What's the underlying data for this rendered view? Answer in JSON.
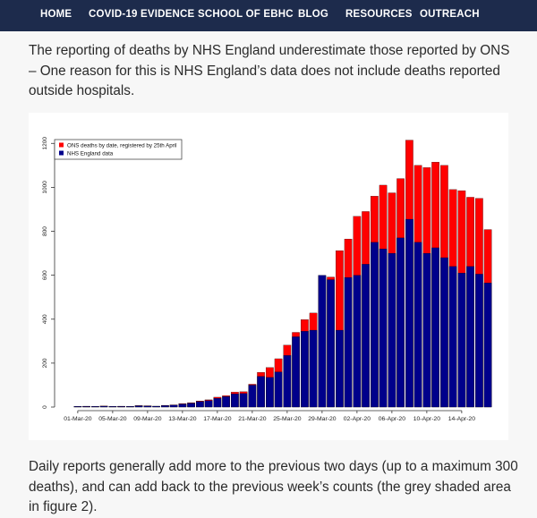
{
  "nav": {
    "items": [
      "HOME",
      "COVID-19 EVIDENCE",
      "SCHOOL OF EBHC",
      "BLOG",
      "RESOURCES",
      "OUTREACH"
    ]
  },
  "intro_text": "The reporting of deaths by  NHS England underestimate those reported by ONS  – One reason for this is NHS England’s data does not include deaths reported outside hospitals.",
  "outro_text": "Daily reports generally add more to the previous two days  (up to a maximum 300 deaths), and can add back to the previous week’s counts (the grey shaded area in figure  2).",
  "colors": {
    "nav_bg": "#1d2b4c",
    "ons": "#ff0000",
    "nhs": "#00008b"
  },
  "chart_data": {
    "type": "bar",
    "stacked": "overlay",
    "categories": [
      "01-Mar-20",
      "02-Mar-20",
      "03-Mar-20",
      "04-Mar-20",
      "05-Mar-20",
      "06-Mar-20",
      "07-Mar-20",
      "08-Mar-20",
      "09-Mar-20",
      "10-Mar-20",
      "11-Mar-20",
      "12-Mar-20",
      "13-Mar-20",
      "14-Mar-20",
      "15-Mar-20",
      "16-Mar-20",
      "17-Mar-20",
      "18-Mar-20",
      "19-Mar-20",
      "20-Mar-20",
      "21-Mar-20",
      "22-Mar-20",
      "23-Mar-20",
      "24-Mar-20",
      "25-Mar-20",
      "26-Mar-20",
      "27-Mar-20",
      "28-Mar-20",
      "29-Mar-20",
      "30-Mar-20",
      "31-Mar-20",
      "01-Apr-20",
      "02-Apr-20",
      "03-Apr-20",
      "04-Apr-20",
      "05-Apr-20",
      "06-Apr-20",
      "07-Apr-20",
      "08-Apr-20",
      "09-Apr-20",
      "10-Apr-20",
      "11-Apr-20",
      "12-Apr-20",
      "13-Apr-20",
      "14-Apr-20",
      "15-Apr-20",
      "16-Apr-20",
      "17-Apr-20"
    ],
    "x_tick_labels": [
      "01-Mar-20",
      "05-Mar-20",
      "09-Mar-20",
      "13-Mar-20",
      "17-Mar-20",
      "21-Mar-20",
      "25-Mar-20",
      "29-Mar-20",
      "02-Apr-20",
      "06-Apr-20",
      "10-Apr-20",
      "14-Apr-20"
    ],
    "y_ticks": [
      0,
      200,
      400,
      600,
      800,
      1000,
      1200
    ],
    "ylim": [
      0,
      1250
    ],
    "legend_position": "top-left",
    "series": [
      {
        "name": "ONS deaths by date, registered by 25th April",
        "values": [
          2,
          4,
          2,
          5,
          3,
          4,
          3,
          7,
          6,
          4,
          8,
          10,
          16,
          20,
          28,
          33,
          45,
          52,
          68,
          70,
          104,
          158,
          180,
          220,
          282,
          340,
          398,
          428,
          598,
          592,
          712,
          765,
          868,
          890,
          960,
          1010,
          975,
          1040,
          1215,
          1100,
          1090,
          1115,
          1100,
          990,
          985,
          955,
          950,
          808
        ]
      },
      {
        "name": "NHS England data",
        "values": [
          1,
          3,
          2,
          4,
          3,
          3,
          2,
          6,
          5,
          4,
          7,
          9,
          14,
          18,
          25,
          30,
          40,
          48,
          60,
          62,
          100,
          140,
          135,
          160,
          235,
          320,
          345,
          350,
          600,
          580,
          350,
          590,
          600,
          650,
          750,
          720,
          700,
          770,
          855,
          750,
          700,
          725,
          680,
          640,
          610,
          640,
          605,
          565
        ]
      }
    ]
  }
}
